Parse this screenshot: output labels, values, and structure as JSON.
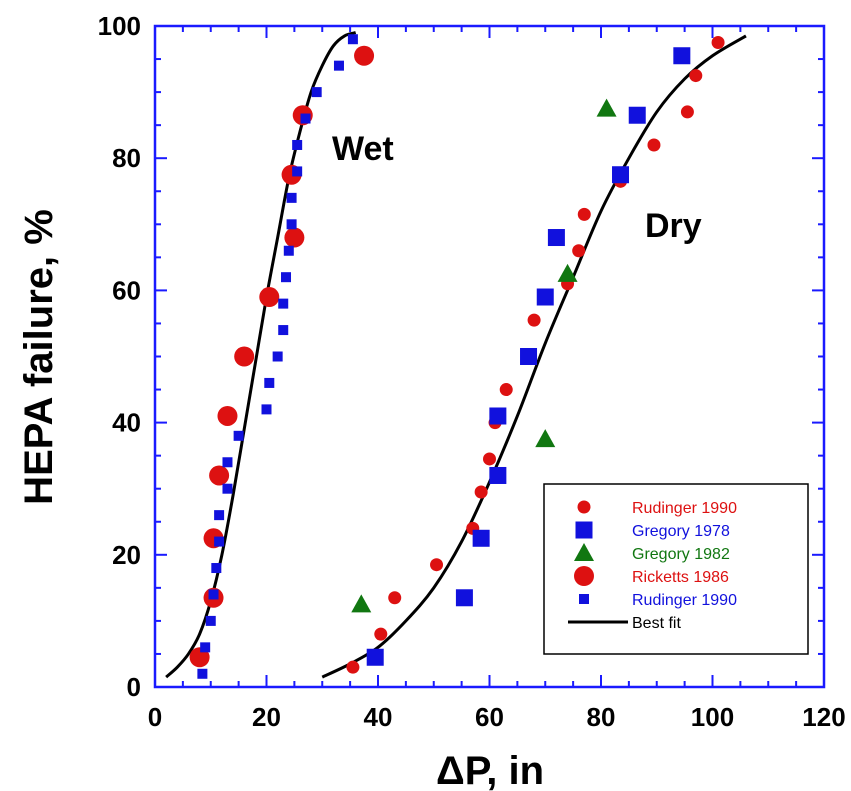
{
  "chart_data": {
    "type": "scatter",
    "xlabel": "ΔP, in",
    "ylabel": "HEPA failure, %",
    "xlim": [
      0,
      120
    ],
    "ylim": [
      0,
      100
    ],
    "xticks": [
      "0",
      "20",
      "40",
      "60",
      "80",
      "100",
      "120"
    ],
    "yticks": [
      "0",
      "20",
      "40",
      "60",
      "80",
      "100"
    ],
    "x_tick_values": [
      0,
      20,
      40,
      60,
      80,
      100,
      120
    ],
    "y_tick_values": [
      0,
      20,
      40,
      60,
      80,
      100
    ],
    "grid": false,
    "legend_position": "bottom-right",
    "annotations": [
      {
        "text": "Wet",
        "x": 38,
        "y": 81
      },
      {
        "text": "Dry",
        "x": 88,
        "y": 68
      }
    ],
    "series": [
      {
        "name": "Rudinger 1990",
        "marker": "circle-small",
        "color": "#dd1111",
        "points": [
          [
            35.5,
            3
          ],
          [
            40.5,
            8
          ],
          [
            43,
            13.5
          ],
          [
            50.5,
            18.5
          ],
          [
            57,
            24
          ],
          [
            58.5,
            29.5
          ],
          [
            60,
            34.5
          ],
          [
            61,
            40
          ],
          [
            63,
            45
          ],
          [
            68,
            55.5
          ],
          [
            74,
            61
          ],
          [
            76,
            66
          ],
          [
            77,
            71.5
          ],
          [
            83.5,
            76.5
          ],
          [
            89.5,
            82
          ],
          [
            95.5,
            87
          ],
          [
            97,
            92.5
          ],
          [
            101,
            97.5
          ]
        ]
      },
      {
        "name": "Gregory  1978",
        "marker": "square-large",
        "color": "#1111dd",
        "points": [
          [
            39.5,
            4.5
          ],
          [
            55.5,
            13.5
          ],
          [
            58.5,
            22.5
          ],
          [
            61.5,
            32
          ],
          [
            61.5,
            41
          ],
          [
            67,
            50
          ],
          [
            70,
            59
          ],
          [
            72,
            68
          ],
          [
            83.5,
            77.5
          ],
          [
            86.5,
            86.5
          ],
          [
            94.5,
            95.5
          ]
        ]
      },
      {
        "name": "Gregory 1982",
        "marker": "triangle",
        "color": "#117711",
        "points": [
          [
            37,
            12.5
          ],
          [
            70,
            37.5
          ],
          [
            74,
            62.5
          ],
          [
            81,
            87.5
          ]
        ]
      },
      {
        "name": "Ricketts  1986",
        "marker": "circle-large",
        "color": "#dd1111",
        "points": [
          [
            8,
            4.5
          ],
          [
            10.5,
            13.5
          ],
          [
            10.5,
            22.5
          ],
          [
            11.5,
            32
          ],
          [
            13,
            41
          ],
          [
            16,
            50
          ],
          [
            20.5,
            59
          ],
          [
            25,
            68
          ],
          [
            24.5,
            77.5
          ],
          [
            26.5,
            86.5
          ],
          [
            37.5,
            95.5
          ]
        ]
      },
      {
        "name": "Rudinger 1990",
        "marker": "square-small",
        "color": "#1111dd",
        "points": [
          [
            8.5,
            2
          ],
          [
            9,
            6
          ],
          [
            10,
            10
          ],
          [
            10.5,
            14
          ],
          [
            11,
            18
          ],
          [
            11.5,
            22
          ],
          [
            11.5,
            26
          ],
          [
            13,
            30
          ],
          [
            13,
            34
          ],
          [
            15,
            38
          ],
          [
            20,
            42
          ],
          [
            20.5,
            46
          ],
          [
            22,
            50
          ],
          [
            23,
            54
          ],
          [
            23,
            58
          ],
          [
            23.5,
            62
          ],
          [
            24,
            66
          ],
          [
            24.5,
            70
          ],
          [
            24.5,
            74
          ],
          [
            25.5,
            78
          ],
          [
            25.5,
            82
          ],
          [
            27,
            86
          ],
          [
            29,
            90
          ],
          [
            33,
            94
          ],
          [
            35.5,
            98
          ]
        ]
      }
    ],
    "best_fit": {
      "name": "Best fit",
      "color": "#000000",
      "curves": [
        [
          [
            2,
            1.5
          ],
          [
            4,
            3
          ],
          [
            6,
            5
          ],
          [
            8,
            8
          ],
          [
            10,
            13
          ],
          [
            12,
            20
          ],
          [
            14,
            29
          ],
          [
            16,
            39
          ],
          [
            18,
            49
          ],
          [
            20,
            59
          ],
          [
            22,
            68
          ],
          [
            24,
            77
          ],
          [
            26,
            84
          ],
          [
            28,
            90
          ],
          [
            30,
            94
          ],
          [
            32,
            97
          ],
          [
            34,
            98.5
          ],
          [
            36,
            99
          ]
        ],
        [
          [
            30,
            1.5
          ],
          [
            35,
            3.5
          ],
          [
            40,
            6
          ],
          [
            45,
            10
          ],
          [
            50,
            15
          ],
          [
            55,
            22
          ],
          [
            60,
            31
          ],
          [
            65,
            41
          ],
          [
            70,
            52
          ],
          [
            75,
            62
          ],
          [
            80,
            72
          ],
          [
            85,
            80
          ],
          [
            90,
            87
          ],
          [
            95,
            92
          ],
          [
            100,
            95.5
          ],
          [
            106,
            98.5
          ]
        ]
      ]
    }
  }
}
